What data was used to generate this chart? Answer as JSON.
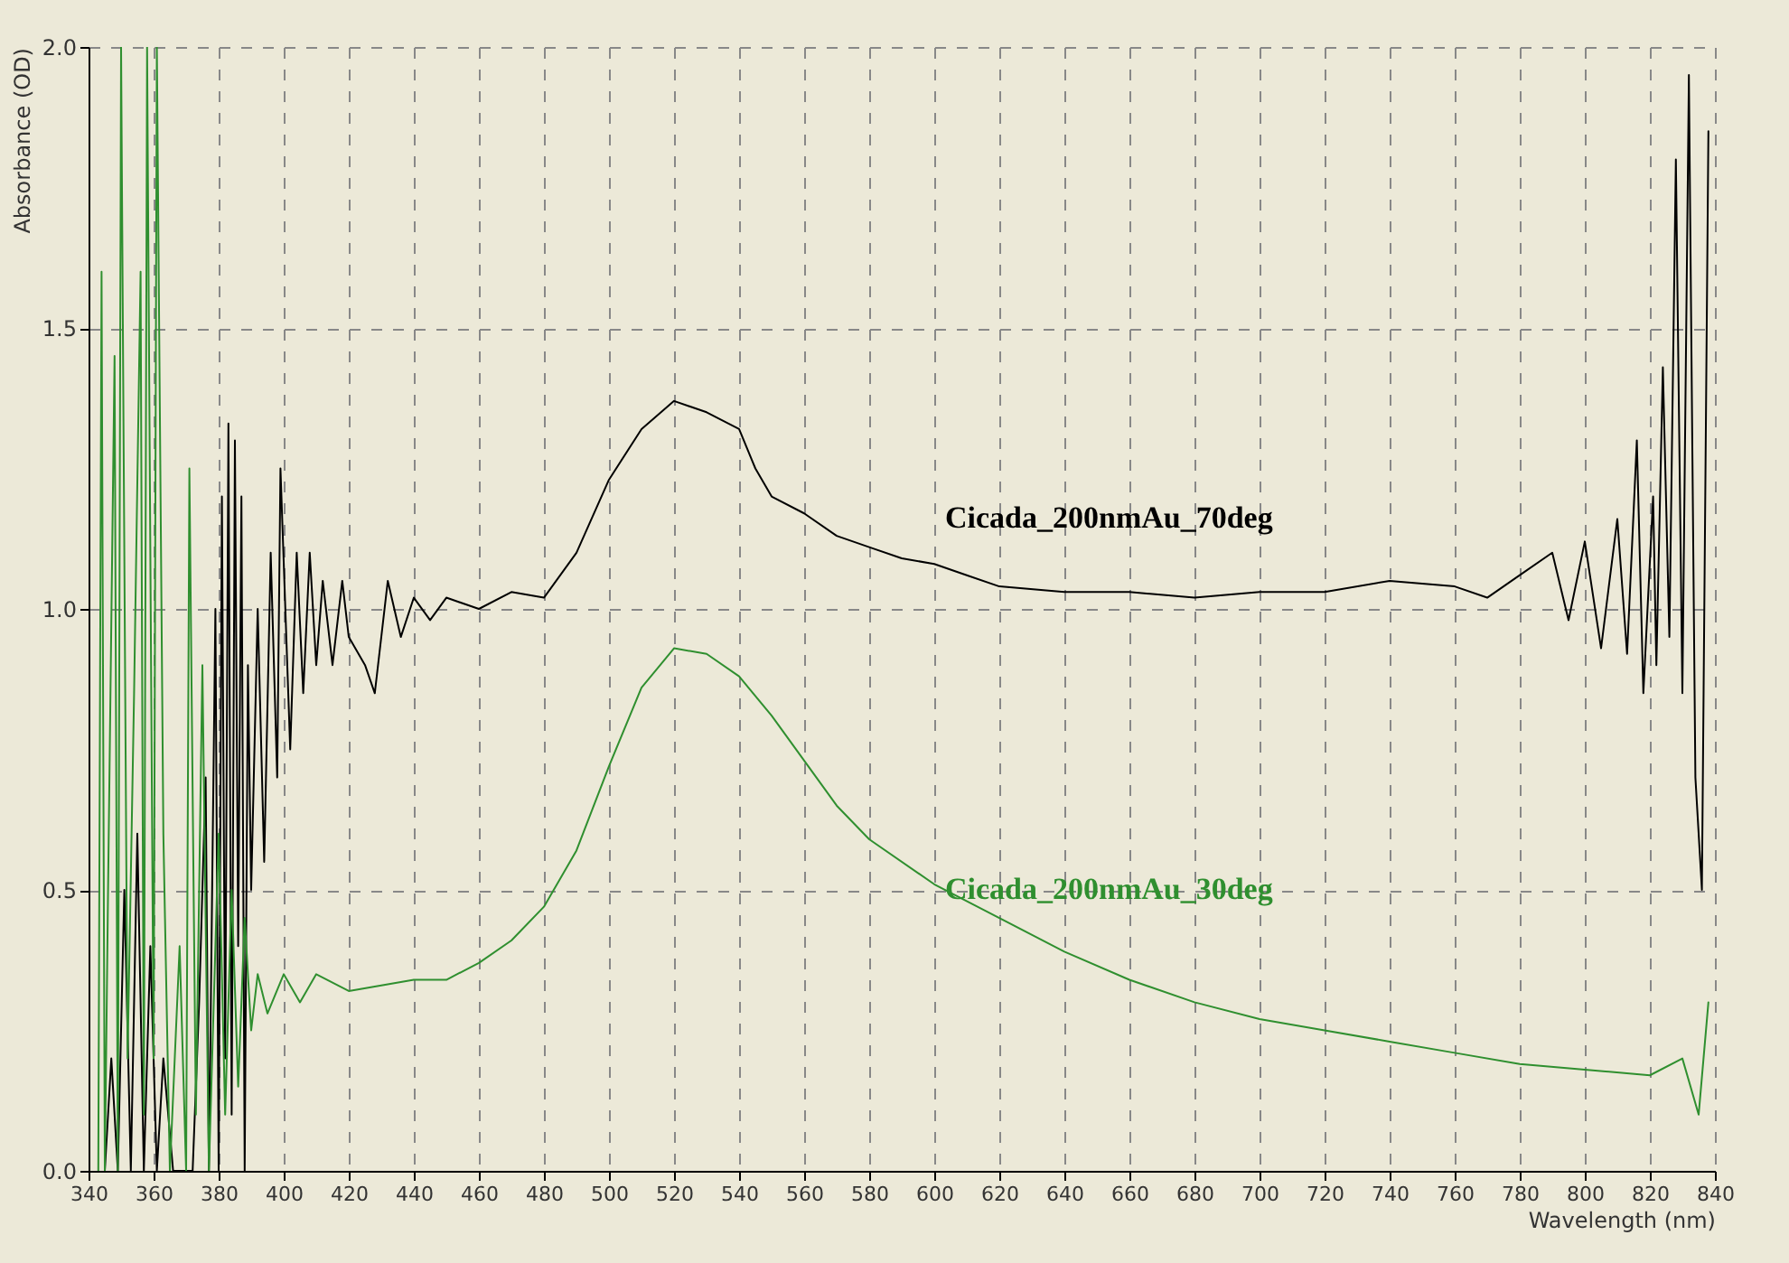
{
  "chart_data": {
    "type": "line",
    "xlabel": "Wavelength (nm)",
    "ylabel": "Absorbance (OD)",
    "xlim": [
      340,
      840
    ],
    "xticks": [
      340,
      360,
      380,
      400,
      420,
      440,
      460,
      480,
      500,
      520,
      540,
      560,
      580,
      600,
      620,
      640,
      660,
      680,
      700,
      720,
      740,
      760,
      780,
      800,
      820,
      840
    ],
    "ylim": [
      0,
      2
    ],
    "yticks": [
      {
        "value": 0,
        "label": "0.0"
      },
      {
        "value": 0.5,
        "label": "0.5"
      },
      {
        "value": 1,
        "label": "1.0"
      },
      {
        "value": 1.5,
        "label": "1.5"
      },
      {
        "value": 2,
        "label": "2.0"
      }
    ],
    "grid": true,
    "legend": false,
    "line_style": "solid",
    "series": [
      {
        "name": "Cicada_200nmAu_70deg",
        "color": "#000000",
        "x": [
          345,
          347,
          349,
          351,
          353,
          355,
          357,
          359,
          361,
          363,
          366,
          372,
          374,
          376,
          377,
          379,
          380,
          381,
          382,
          383,
          384,
          385,
          386,
          387,
          388,
          389,
          390,
          392,
          394,
          396,
          398,
          399,
          402,
          404,
          406,
          408,
          410,
          412,
          415,
          418,
          420,
          425,
          428,
          432,
          436,
          440,
          445,
          450,
          460,
          470,
          480,
          490,
          500,
          510,
          520,
          530,
          540,
          545,
          550,
          560,
          570,
          580,
          590,
          600,
          610,
          620,
          640,
          660,
          680,
          700,
          720,
          740,
          760,
          770,
          780,
          790,
          795,
          800,
          805,
          810,
          813,
          816,
          818,
          821,
          822,
          824,
          826,
          828,
          830,
          832,
          834,
          836,
          838
        ],
        "values": [
          0,
          0.2,
          0,
          0.5,
          0,
          0.6,
          0,
          0.4,
          0,
          0.2,
          0,
          0,
          0.3,
          0.7,
          0,
          1.0,
          0,
          1.2,
          0.2,
          1.33,
          0.1,
          1.3,
          0.4,
          1.2,
          0,
          0.9,
          0.5,
          1.0,
          0.55,
          1.1,
          0.7,
          1.25,
          0.75,
          1.1,
          0.85,
          1.1,
          0.9,
          1.05,
          0.9,
          1.05,
          0.95,
          0.9,
          0.85,
          1.05,
          0.95,
          1.02,
          0.98,
          1.02,
          1.0,
          1.03,
          1.02,
          1.1,
          1.23,
          1.32,
          1.37,
          1.35,
          1.32,
          1.25,
          1.2,
          1.17,
          1.13,
          1.11,
          1.09,
          1.08,
          1.06,
          1.04,
          1.03,
          1.03,
          1.02,
          1.03,
          1.03,
          1.05,
          1.04,
          1.02,
          1.06,
          1.1,
          0.98,
          1.12,
          0.93,
          1.16,
          0.92,
          1.3,
          0.85,
          1.2,
          0.9,
          1.43,
          0.95,
          1.8,
          0.85,
          1.95,
          0.7,
          0.5,
          1.85
        ]
      },
      {
        "name": "Cicada_200nmAu_30deg",
        "color": "#2f8f2f",
        "x": [
          343,
          344,
          345,
          346,
          348,
          349,
          350,
          352,
          354,
          356,
          357,
          358,
          360,
          361,
          363,
          365,
          368,
          370,
          371,
          373,
          375,
          377,
          380,
          382,
          384,
          386,
          388,
          390,
          392,
          395,
          400,
          405,
          410,
          420,
          430,
          440,
          450,
          460,
          470,
          480,
          490,
          500,
          510,
          520,
          530,
          540,
          550,
          560,
          570,
          580,
          600,
          620,
          640,
          660,
          680,
          700,
          720,
          740,
          760,
          780,
          800,
          820,
          830,
          835,
          838
        ],
        "values": [
          0,
          1.6,
          0,
          0.5,
          1.45,
          0,
          2.0,
          0.2,
          0.85,
          1.6,
          0.1,
          2.0,
          0.2,
          2.0,
          0.6,
          0,
          0.4,
          0,
          1.25,
          0.1,
          0.9,
          0,
          0.6,
          0.1,
          0.5,
          0.15,
          0.45,
          0.25,
          0.35,
          0.28,
          0.35,
          0.3,
          0.35,
          0.32,
          0.33,
          0.34,
          0.34,
          0.37,
          0.41,
          0.47,
          0.57,
          0.72,
          0.86,
          0.93,
          0.92,
          0.88,
          0.81,
          0.73,
          0.65,
          0.59,
          0.51,
          0.45,
          0.39,
          0.34,
          0.3,
          0.27,
          0.25,
          0.23,
          0.21,
          0.19,
          0.18,
          0.17,
          0.2,
          0.1,
          0.3
        ]
      }
    ]
  }
}
